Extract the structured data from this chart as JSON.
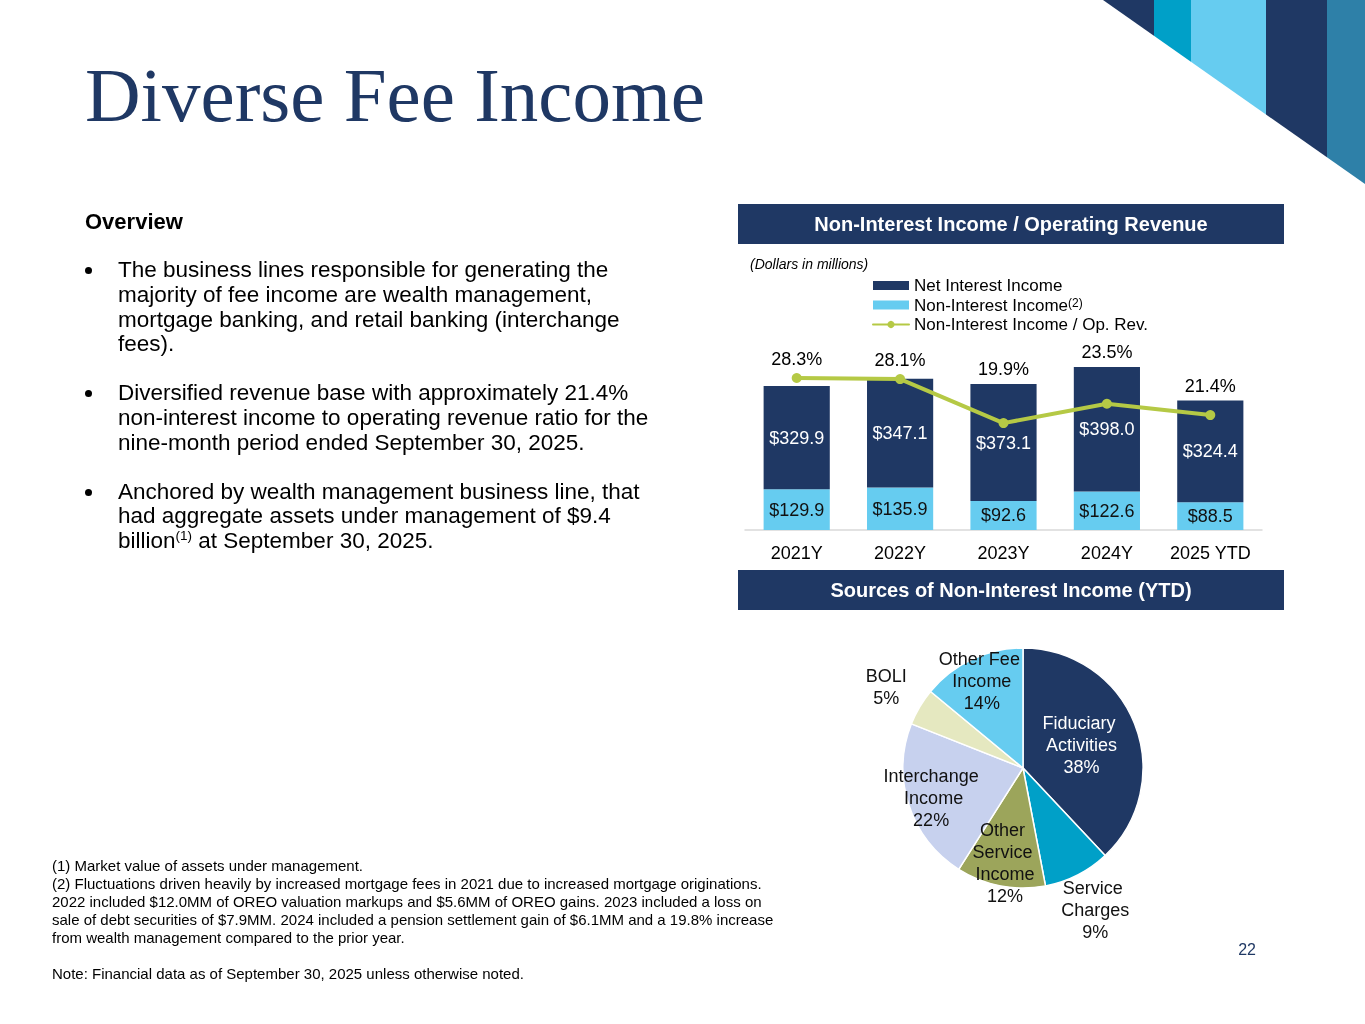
{
  "chart_data": [
    {
      "type": "other",
      "title": "Diverse Fee Income",
      "subtitle": "Overview",
      "annotations": [
        "The business lines responsible for generating the majority of fee income are wealth management, mortgage banking, and retail banking (interchange fees).",
        "Diversified revenue base with approximately 21.4% non-interest income to operating revenue ratio for the nine-month period ended September 30, 2025.",
        "Anchored by wealth management business line, that had aggregate assets under management of $9.4 billion$^{(1)}$ at September 30, 2025."
      ]
    },
    {
      "type": "bar",
      "title": "Non-Interest Income / Operating Revenue",
      "subtitle": "(Dollars in millions)",
      "categories": [
        "2021Y",
        "2022Y",
        "2023Y",
        "2024Y",
        "2025 YTD"
      ],
      "stacked": true,
      "series": [
        {
          "name": "Non-Interest Income$^{(2)}$",
          "color": "#66ccf0",
          "values": [
            129.9,
            135.9,
            92.6,
            122.6,
            88.5
          ],
          "value_labels": [
            "$129.9",
            "$135.9",
            "$92.6",
            "$122.6",
            "$88.5"
          ]
        },
        {
          "name": "Net Interest Income",
          "color": "#1f3864",
          "values": [
            329.9,
            347.1,
            373.1,
            398.0,
            324.4
          ],
          "value_labels": [
            "$329.9",
            "$347.1",
            "$373.1",
            "$398.0",
            "$324.4"
          ]
        },
        {
          "name": "Non-Interest Income / Op. Rev.",
          "type": "line",
          "axis": "y2",
          "color": "#b5c945",
          "values": [
            28.3,
            28.1,
            19.9,
            23.5,
            21.4
          ],
          "value_labels": [
            "28.3%",
            "28.1%",
            "19.9%",
            "23.5%",
            "21.4%"
          ]
        }
      ],
      "tick_labels": "x",
      "legend": "top",
      "marker": "circle"
    },
    {
      "type": "pie",
      "title": "Sources of Non-Interest Income (YTD)",
      "categories": [
        "Fiduciary Activities",
        "Service Charges",
        "Other Service Income",
        "Interchange Income",
        "BOLI",
        "Other Fee Income"
      ],
      "values": [
        38,
        9,
        12,
        22,
        5,
        14
      ],
      "value_labels": [
        "38%",
        "9%",
        "12%",
        "22%",
        "5%",
        "14%"
      ],
      "colors": [
        "#1f3864",
        "#00a0c8",
        "#9ca55b",
        "#c7d1ee",
        "#e5e8c0",
        "#66ccf0"
      ],
      "annotations": [
        "22"
      ]
    },
    {
      "type": "other",
      "annotations": [
        "(1) Market value of assets under management.",
        "(2) Fluctuations driven heavily by increased mortgage fees in 2021 due to increased mortgage originations. 2022 included $12.0MM of OREO valuation markups and $5.6MM of OREO gains. 2023 included a loss on sale of debt securities of $7.9MM. 2024 included a pension settlement gain of $6.1MM and a 19.8% increase from wealth management compared to the prior year.",
        "Note: Financial data as of September 30, 2025 unless otherwise noted."
      ]
    }
  ]
}
